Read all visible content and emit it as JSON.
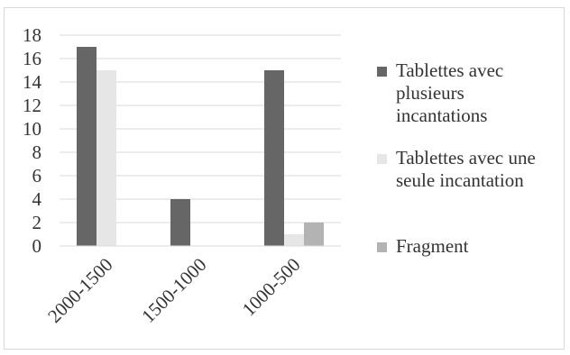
{
  "chart_data": {
    "type": "bar",
    "categories": [
      "2000-1500",
      "1500-1000",
      "1000-500"
    ],
    "series": [
      {
        "name": "Tablettes avec plusieurs incantations",
        "values": [
          17,
          4,
          15
        ],
        "color": "#666666"
      },
      {
        "name": "Tablettes avec une seule incantation",
        "values": [
          15,
          0,
          1
        ],
        "color": "#e6e6e6"
      },
      {
        "name": "Fragment",
        "values": [
          0,
          0,
          2
        ],
        "color": "#b3b3b3"
      }
    ],
    "title": "",
    "xlabel": "",
    "ylabel": "",
    "ylim": [
      0,
      18
    ],
    "yticks": [
      "0",
      "2",
      "4",
      "6",
      "8",
      "10",
      "12",
      "14",
      "16",
      "18"
    ],
    "grid": true,
    "legend_position": "right"
  }
}
